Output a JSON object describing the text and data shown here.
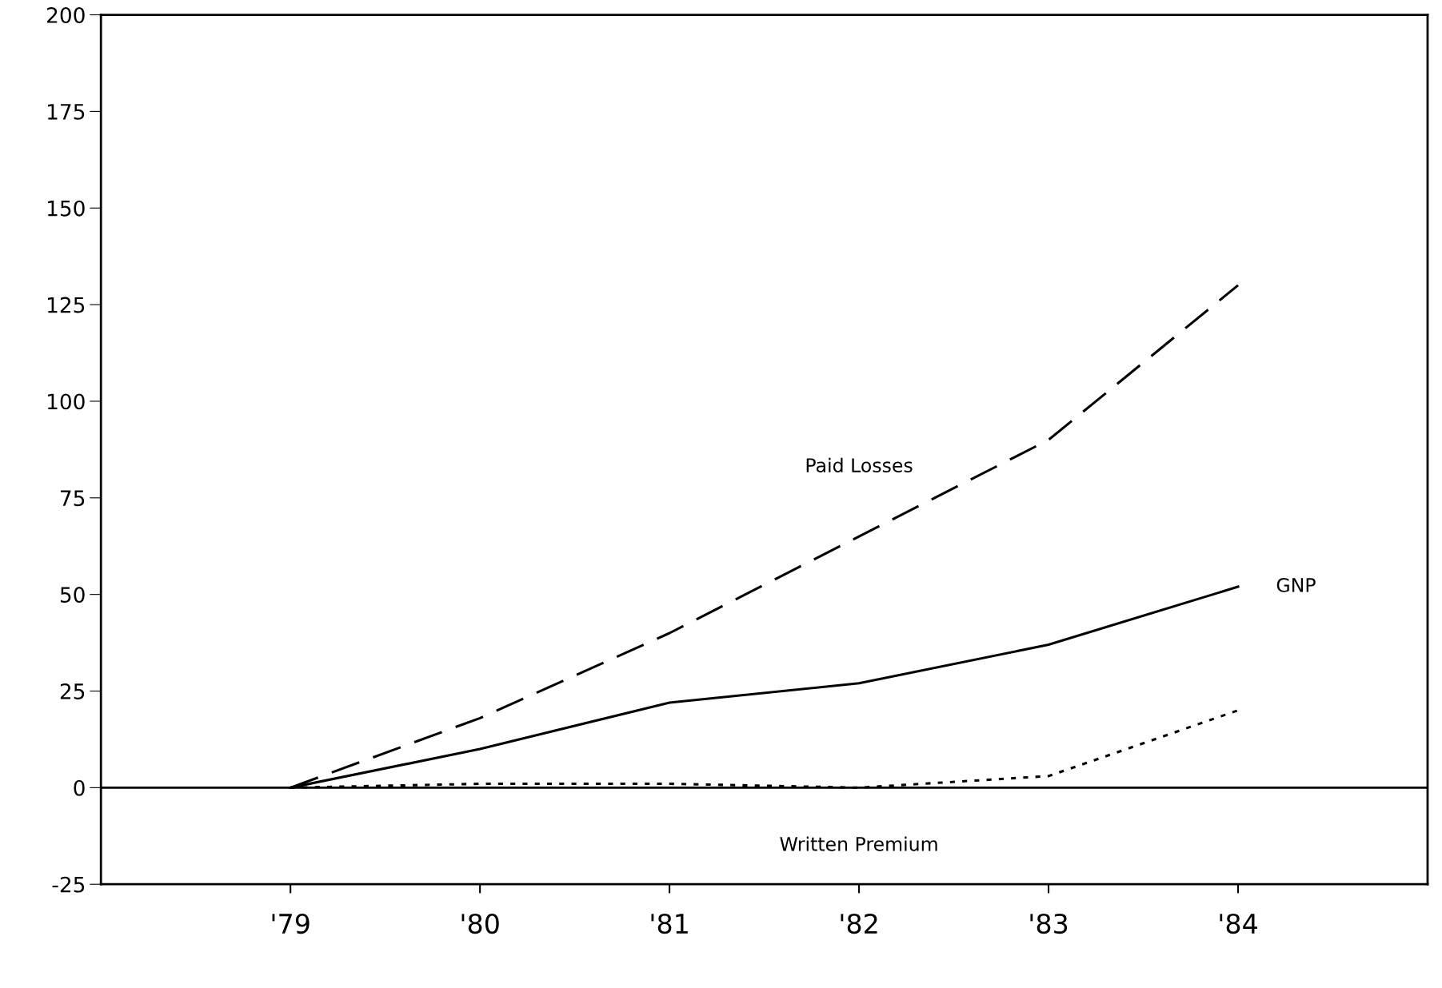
{
  "chart_data": {
    "type": "line",
    "categories": [
      "'79",
      "'80",
      "'81",
      "'82",
      "'83",
      "'84"
    ],
    "series": [
      {
        "name": "Paid Losses",
        "color": "#000000",
        "line_style": "dashed",
        "values": [
          0,
          18,
          40,
          65,
          90,
          130
        ]
      },
      {
        "name": "GNP",
        "color": "#000000",
        "line_style": "solid",
        "values": [
          0,
          10,
          22,
          27,
          37,
          52
        ]
      },
      {
        "name": "Written Premium",
        "color": "#000000",
        "line_style": "dotted",
        "values": [
          0,
          1,
          1,
          0,
          3,
          20
        ]
      }
    ],
    "ylim": [
      -25,
      200
    ],
    "yticks": [
      -25,
      0,
      25,
      50,
      75,
      100,
      125,
      150,
      175,
      200
    ],
    "ref_lines": [
      {
        "axis": "y",
        "value": 0,
        "color": "#000000",
        "line_style": "solid"
      }
    ],
    "grid": false,
    "legend": false,
    "marker": "none"
  }
}
